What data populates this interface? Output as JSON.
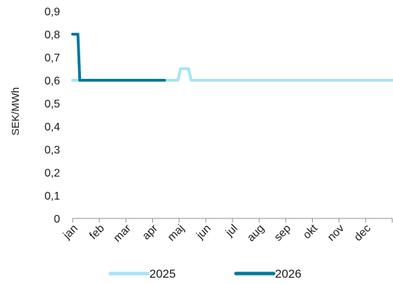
{
  "chart_data": {
    "type": "line",
    "ylabel": "SEK/MWh",
    "ylim": [
      0,
      0.9
    ],
    "yticks": [
      0,
      0.1,
      0.2,
      0.3,
      0.4,
      0.5,
      0.6,
      0.7,
      0.8,
      0.9
    ],
    "ytick_labels": [
      "0",
      "0,1",
      "0,2",
      "0,3",
      "0,4",
      "0,5",
      "0,6",
      "0,7",
      "0,8",
      "0,9"
    ],
    "x_categories": [
      "jan",
      "feb",
      "mar",
      "apr",
      "maj",
      "jun",
      "jul",
      "aug",
      "sep",
      "okt",
      "nov",
      "dec"
    ],
    "xlim": [
      0,
      12
    ],
    "grid": false,
    "legend_position": "bottom",
    "series": [
      {
        "name": "2025",
        "color": "#a6e3f5",
        "points": [
          [
            0,
            0.6
          ],
          [
            3.95,
            0.6
          ],
          [
            4.05,
            0.65
          ],
          [
            4.35,
            0.65
          ],
          [
            4.45,
            0.6
          ],
          [
            12,
            0.6
          ]
        ]
      },
      {
        "name": "2026",
        "color": "#00789c",
        "points": [
          [
            0,
            0.8
          ],
          [
            0.2,
            0.8
          ],
          [
            0.27,
            0.6
          ],
          [
            3.45,
            0.6
          ]
        ]
      }
    ]
  }
}
